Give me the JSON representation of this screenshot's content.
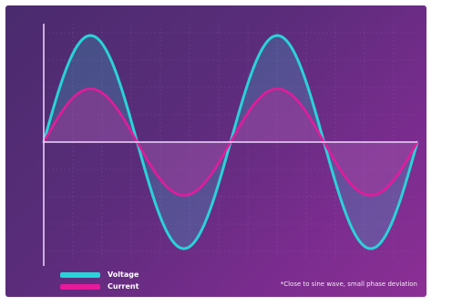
{
  "chart_data": {
    "type": "line",
    "title": "",
    "xlabel": "",
    "ylabel": "",
    "xlim": [
      0,
      12.566
    ],
    "ylim": [
      -1.0,
      1.0
    ],
    "grid": true,
    "legend_position": "bottom-left",
    "series": [
      {
        "name": "Voltage",
        "color": "#29d3d8",
        "amplitude": 0.9,
        "frequency": 1,
        "phase": 0
      },
      {
        "name": "Current",
        "color": "#e8199a",
        "amplitude": 0.45,
        "frequency": 1,
        "phase": 0
      }
    ],
    "annotation": "*Close to sine wave, small phase deviation"
  },
  "legend": {
    "voltage_label": "Voltage",
    "current_label": "Current"
  },
  "colors": {
    "axis": "#f2d9ff",
    "grid": "#b487cf"
  }
}
